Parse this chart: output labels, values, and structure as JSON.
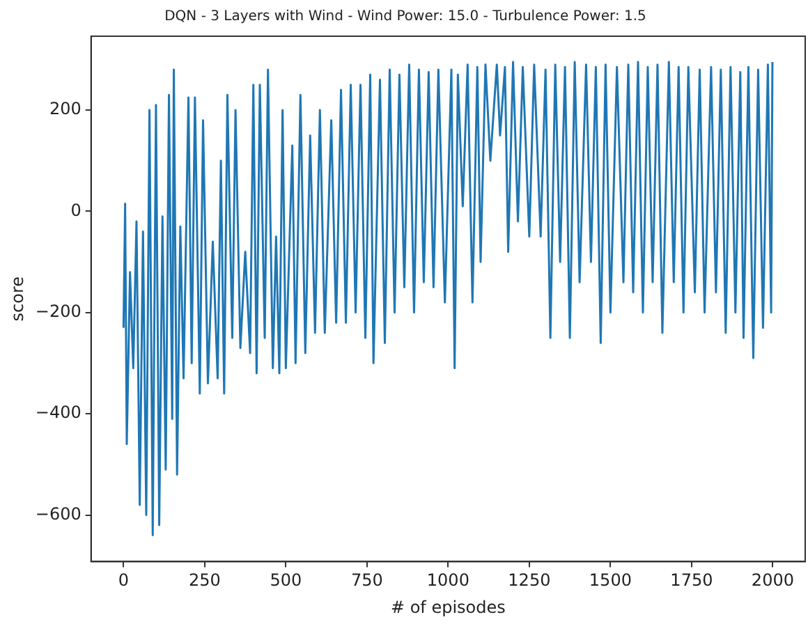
{
  "chart_data": {
    "type": "line",
    "title": "DQN - 3 Layers with Wind - Wind Power: 15.0 - Turbulence Power: 1.5",
    "xlabel": "# of episodes",
    "ylabel": "score",
    "xlim": [
      -100,
      2100
    ],
    "xticks": [
      0,
      250,
      500,
      750,
      1000,
      1250,
      1500,
      1750,
      2000
    ],
    "ylim": [
      -692,
      346
    ],
    "yticks": [
      -600,
      -400,
      -200,
      0,
      200
    ],
    "grid": false,
    "legend": false,
    "marker": "none",
    "line_style": "solid",
    "series": [
      {
        "color": "#1f77b4",
        "x": [
          0,
          5,
          10,
          20,
          30,
          40,
          50,
          60,
          70,
          80,
          90,
          100,
          110,
          120,
          130,
          140,
          150,
          155,
          165,
          175,
          185,
          200,
          210,
          220,
          235,
          245,
          260,
          275,
          290,
          300,
          310,
          320,
          335,
          345,
          360,
          375,
          390,
          400,
          410,
          420,
          435,
          445,
          460,
          470,
          480,
          490,
          500,
          520,
          530,
          545,
          560,
          575,
          590,
          605,
          620,
          640,
          655,
          670,
          685,
          700,
          715,
          730,
          745,
          760,
          770,
          790,
          805,
          820,
          835,
          850,
          865,
          880,
          895,
          910,
          925,
          940,
          955,
          970,
          990,
          1010,
          1020,
          1030,
          1045,
          1060,
          1075,
          1090,
          1100,
          1115,
          1130,
          1150,
          1160,
          1175,
          1185,
          1200,
          1215,
          1230,
          1250,
          1265,
          1285,
          1300,
          1315,
          1330,
          1345,
          1360,
          1375,
          1390,
          1405,
          1425,
          1440,
          1455,
          1470,
          1485,
          1500,
          1520,
          1540,
          1555,
          1570,
          1585,
          1600,
          1615,
          1630,
          1645,
          1660,
          1680,
          1695,
          1710,
          1725,
          1740,
          1760,
          1775,
          1790,
          1810,
          1825,
          1840,
          1855,
          1870,
          1885,
          1900,
          1910,
          1925,
          1940,
          1955,
          1970,
          1985,
          1995,
          1999
        ],
        "values": [
          -230,
          15,
          -460,
          -120,
          -310,
          -20,
          -580,
          -40,
          -600,
          200,
          -640,
          210,
          -620,
          -10,
          -510,
          230,
          -410,
          280,
          -520,
          -30,
          -330,
          225,
          -300,
          225,
          -360,
          180,
          -340,
          -60,
          -330,
          100,
          -360,
          230,
          -250,
          200,
          -270,
          -80,
          -280,
          250,
          -320,
          250,
          -250,
          280,
          -310,
          -50,
          -320,
          200,
          -310,
          130,
          -300,
          230,
          -280,
          150,
          -240,
          200,
          -240,
          180,
          -220,
          240,
          -220,
          250,
          -200,
          250,
          -250,
          270,
          -300,
          260,
          -260,
          280,
          -200,
          270,
          -150,
          290,
          -200,
          280,
          -140,
          275,
          -150,
          280,
          -180,
          280,
          -310,
          270,
          10,
          290,
          -180,
          285,
          -100,
          290,
          100,
          290,
          150,
          285,
          -80,
          295,
          -20,
          285,
          -50,
          290,
          -50,
          280,
          -250,
          290,
          -100,
          285,
          -250,
          295,
          -140,
          290,
          -100,
          285,
          -260,
          290,
          -200,
          285,
          -140,
          290,
          -160,
          295,
          -200,
          285,
          -140,
          290,
          -240,
          295,
          -140,
          285,
          -200,
          285,
          -160,
          280,
          -200,
          285,
          -160,
          280,
          -240,
          285,
          -200,
          275,
          -250,
          285,
          -290,
          280,
          -230,
          290,
          -200,
          295
        ]
      }
    ]
  }
}
